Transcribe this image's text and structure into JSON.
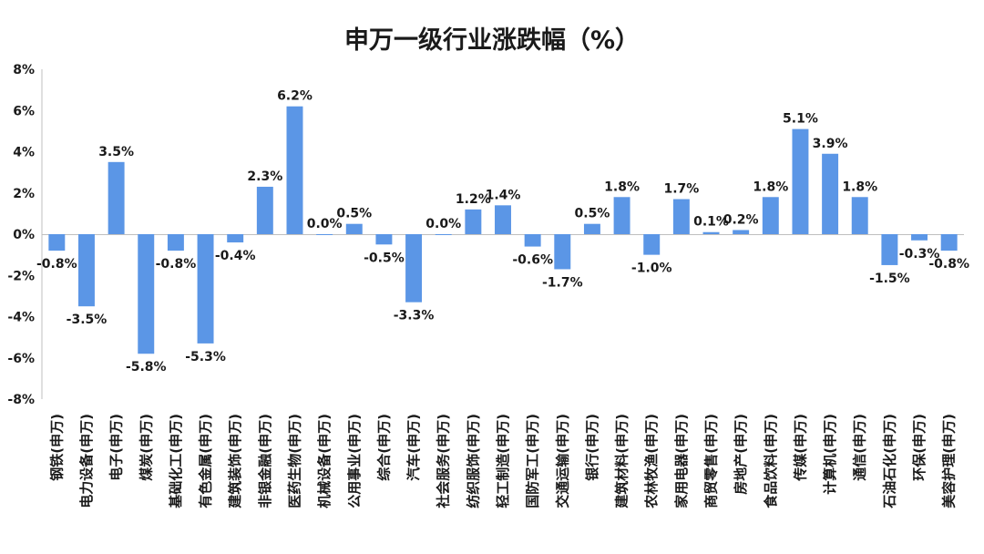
{
  "chart_data": {
    "type": "bar",
    "title": "申万一级行业涨跌幅（%）",
    "ylim": [
      -8,
      8
    ],
    "yticks": [
      "8%",
      "6%",
      "4%",
      "2%",
      "0%",
      "-2%",
      "-4%",
      "-6%",
      "-8%"
    ],
    "ytick_values": [
      8,
      6,
      4,
      2,
      0,
      -2,
      -4,
      -6,
      -8
    ],
    "bar_color": "#5b96e6",
    "categories": [
      "钢铁(申万)",
      "电力设备(申万)",
      "电子(申万)",
      "煤炭(申万)",
      "基础化工(申万)",
      "有色金属(申万)",
      "建筑装饰(申万)",
      "非银金融(申万)",
      "医药生物(申万)",
      "机械设备(申万)",
      "公用事业(申万)",
      "综合(申万)",
      "汽车(申万)",
      "社会服务(申万)",
      "纺织服饰(申万)",
      "轻工制造(申万)",
      "国防军工(申万)",
      "交通运输(申万)",
      "银行(申万)",
      "建筑材料(申万)",
      "农林牧渔(申万)",
      "家用电器(申万)",
      "商贸零售(申万)",
      "房地产(申万)",
      "食品饮料(申万)",
      "传媒(申万)",
      "计算机(申万)",
      "通信(申万)",
      "石油石化(申万)",
      "环保(申万)",
      "美容护理(申万)"
    ],
    "values": [
      -0.8,
      -3.5,
      3.5,
      -5.8,
      -0.8,
      -5.3,
      -0.4,
      2.3,
      6.2,
      0.0,
      0.5,
      -0.5,
      -3.3,
      0.0,
      1.2,
      1.4,
      -0.6,
      -1.7,
      0.5,
      1.8,
      -1.0,
      1.7,
      0.1,
      0.2,
      1.8,
      5.1,
      3.9,
      1.8,
      -1.5,
      -0.3,
      -0.8
    ],
    "labels": [
      "-0.8%",
      "-3.5%",
      "3.5%",
      "-5.8%",
      "-0.8%",
      "-5.3%",
      "-0.4%",
      "2.3%",
      "6.2%",
      "0.0%",
      "0.5%",
      "-0.5%",
      "-3.3%",
      "0.0%",
      "1.2%",
      "1.4%",
      "-0.6%",
      "-1.7%",
      "0.5%",
      "1.8%",
      "-1.0%",
      "1.7%",
      "0.1%",
      "0.2%",
      "1.8%",
      "5.1%",
      "3.9%",
      "1.8%",
      "-1.5%",
      "-0.3%",
      "-0.8%"
    ]
  }
}
